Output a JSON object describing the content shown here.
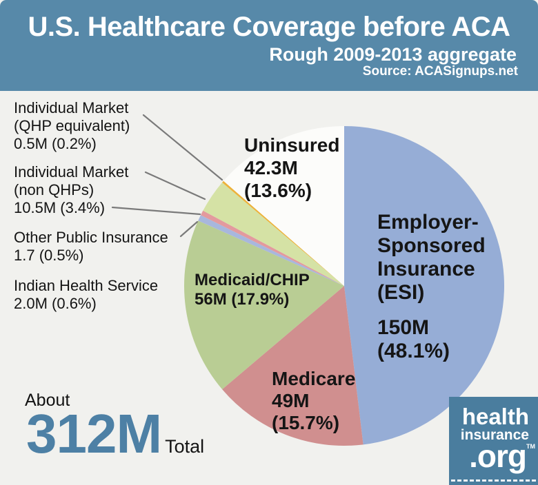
{
  "header": {
    "title": "U.S. Healthcare Coverage before ACA",
    "subtitle": "Rough 2009-2013 aggregate",
    "source": "Source: ACASignups.net"
  },
  "callouts": {
    "qhp": {
      "line1": "Individual Market",
      "line2": "(QHP equivalent)",
      "line3": "0.5M (0.2%)"
    },
    "nonqhp": {
      "line1": "Individual Market",
      "line2": "(non QHPs)",
      "line3": "10.5M (3.4%)"
    },
    "other_public": {
      "line1": "Other Public Insurance",
      "line2": "1.7 (0.5%)"
    },
    "ihs": {
      "line1": "Indian Health Service",
      "line2": "2.0M (0.6%)"
    }
  },
  "pie_labels": {
    "uninsured": {
      "line1": "Uninsured",
      "line2": "42.3M",
      "line3": "(13.6%)"
    },
    "esi": {
      "line1": "Employer-",
      "line2": "Sponsored",
      "line3": "Insurance",
      "line4": "(ESI)"
    },
    "esi_value": {
      "line1": "150M",
      "line2": "(48.1%)"
    },
    "medicare": {
      "line1": "Medicare",
      "line2": "49M",
      "line3": "(15.7%)"
    },
    "medicaid": {
      "line1": "Medicaid/CHIP",
      "line2": "56M (17.9%)"
    }
  },
  "total": {
    "prefix": "About",
    "value": "312M",
    "suffix": "Total"
  },
  "logo": {
    "line1": "health",
    "line2": "insurance",
    "line3": ".org",
    "tm": "TM"
  },
  "colors": {
    "page_bg": "#f1f1ee",
    "header_bg": "#5789a9",
    "logo_bg": "#4a7d9e",
    "total_accent": "#4d80a5",
    "leader_line": "#7a7a7a"
  },
  "chart_data": {
    "type": "pie",
    "title": "U.S. Healthcare Coverage before ACA",
    "subtitle": "Rough 2009-2013 aggregate",
    "source": "Source: ACASignups.net",
    "total_label": "About 312M Total",
    "start_angle_deg": 0,
    "direction": "clockwise",
    "legend_position": "labels-on-and-around-pie",
    "slices": [
      {
        "label": "Employer-Sponsored Insurance (ESI)",
        "value_millions": 150,
        "percent": 48.1,
        "color": "#96add6"
      },
      {
        "label": "Medicare",
        "value_millions": 49,
        "percent": 15.7,
        "color": "#d08f8f"
      },
      {
        "label": "Medicaid/CHIP",
        "value_millions": 56,
        "percent": 17.9,
        "color": "#b9cd94"
      },
      {
        "label": "Indian Health Service",
        "value_millions": 2.0,
        "percent": 0.6,
        "color": "#a8b7dd"
      },
      {
        "label": "Other Public Insurance",
        "value_millions": 1.7,
        "percent": 0.5,
        "color": "#e39a9e"
      },
      {
        "label": "Individual Market (non QHPs)",
        "value_millions": 10.5,
        "percent": 3.4,
        "color": "#d5e2a5"
      },
      {
        "label": "Individual Market (QHP equivalent)",
        "value_millions": 0.5,
        "percent": 0.2,
        "color": "#edb23a"
      },
      {
        "label": "Uninsured",
        "value_millions": 42.3,
        "percent": 13.6,
        "color": "#fcfcfa"
      }
    ]
  }
}
